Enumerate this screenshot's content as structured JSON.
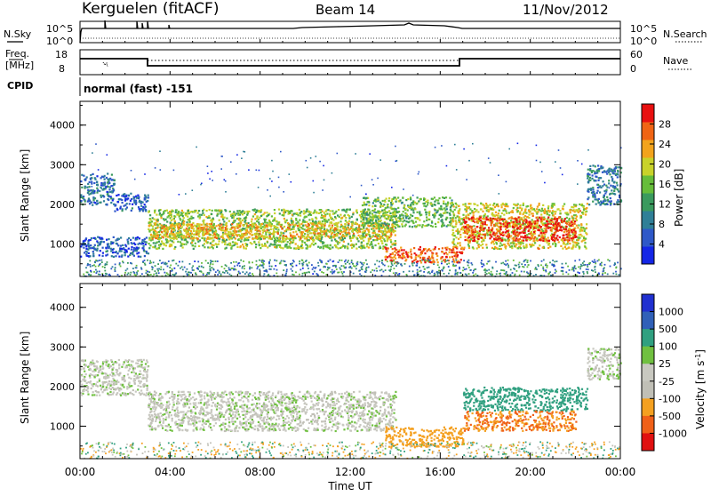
{
  "header": {
    "station": "Kerguelen (fitACF)",
    "beam": "Beam 14",
    "date": "11/Nov/2012"
  },
  "nsky_panel": {
    "label": "N.Sky",
    "left_ticks": [
      "10^5",
      "10^0"
    ],
    "right_ticks": [
      "10^5",
      "10^0"
    ],
    "right_label": "N.Search"
  },
  "freq_panel": {
    "label_line1": "Freq.",
    "label_line2": "[MHz]",
    "left_ticks": [
      "18",
      "8"
    ],
    "right_ticks": [
      "60",
      "0"
    ],
    "right_label": "Nave"
  },
  "cpid_panel": {
    "label": "CPID",
    "value": "normal (fast) -151"
  },
  "colors": {
    "power_scale": [
      "#1426e6",
      "#2e58c8",
      "#2f7f97",
      "#3a9a5e",
      "#66bd3a",
      "#c8d22a",
      "#f2a31c",
      "#f06414",
      "#e81010"
    ],
    "velocity_scale": [
      "#2030d0",
      "#3060b8",
      "#30a080",
      "#70c040",
      "#c8c8c0",
      "#c0bfb6",
      "#f4a020",
      "#f06018",
      "#e01010"
    ]
  },
  "chart_data": [
    {
      "type": "heatmap",
      "name": "power",
      "ylabel": "Slant Range [km]",
      "ylim": [
        180,
        4600
      ],
      "y_ticks": [
        "1000",
        "2000",
        "3000",
        "4000"
      ],
      "x_tick_labels": [
        "00:00",
        "04:00",
        "08:00",
        "12:00",
        "16:00",
        "20:00",
        "00:00"
      ],
      "xlabel": "Time UT",
      "colorbar": {
        "label": "Power [dB]",
        "ticks": [
          "4",
          "8",
          "12",
          "16",
          "20",
          "24",
          "28"
        ],
        "range": [
          0,
          32
        ]
      },
      "regions": [
        {
          "t": [
            0.0,
            1.5
          ],
          "r": [
            2000,
            2800
          ],
          "power": 8
        },
        {
          "t": [
            1.5,
            3.0
          ],
          "r": [
            1850,
            2300
          ],
          "power": 6
        },
        {
          "t": [
            0.0,
            3.0
          ],
          "r": [
            700,
            1200
          ],
          "power": 6
        },
        {
          "t": [
            3.0,
            14.0
          ],
          "r": [
            900,
            1900
          ],
          "power": 17
        },
        {
          "t": [
            3.0,
            14.0
          ],
          "r": [
            1150,
            1550
          ],
          "power": 22
        },
        {
          "t": [
            12.5,
            16.5
          ],
          "r": [
            1450,
            2200
          ],
          "power": 15
        },
        {
          "t": [
            13.5,
            17.0
          ],
          "r": [
            550,
            950
          ],
          "power": 27
        },
        {
          "t": [
            16.5,
            22.5
          ],
          "r": [
            900,
            2050
          ],
          "power": 20
        },
        {
          "t": [
            17.0,
            22.0
          ],
          "r": [
            1100,
            1700
          ],
          "power": 29
        },
        {
          "t": [
            22.5,
            24.0
          ],
          "r": [
            2000,
            3000
          ],
          "power": 9
        }
      ]
    },
    {
      "type": "heatmap",
      "name": "velocity",
      "ylabel": "Slant Range [km]",
      "ylim": [
        180,
        4600
      ],
      "y_ticks": [
        "1000",
        "2000",
        "3000",
        "4000"
      ],
      "x_tick_labels": [
        "00:00",
        "04:00",
        "08:00",
        "12:00",
        "16:00",
        "20:00",
        "00:00"
      ],
      "xlabel": "Time UT",
      "colorbar": {
        "label": "Velocity [m s^-1]",
        "ticks": [
          "1000",
          "500",
          "100",
          "25",
          "-25",
          "-100",
          "-500",
          "-1000"
        ]
      },
      "regions": [
        {
          "t": [
            0.0,
            3.0
          ],
          "r": [
            1800,
            2700
          ],
          "velocity": 0
        },
        {
          "t": [
            3.0,
            14.0
          ],
          "r": [
            900,
            1900
          ],
          "velocity": 0
        },
        {
          "t": [
            13.5,
            17.0
          ],
          "r": [
            500,
            1000
          ],
          "velocity": -150
        },
        {
          "t": [
            17.0,
            22.5
          ],
          "r": [
            1400,
            2000
          ],
          "velocity": 150
        },
        {
          "t": [
            17.0,
            22.0
          ],
          "r": [
            900,
            1400
          ],
          "velocity": -200
        },
        {
          "t": [
            22.5,
            24.0
          ],
          "r": [
            2200,
            3000
          ],
          "velocity": 0
        }
      ]
    }
  ]
}
